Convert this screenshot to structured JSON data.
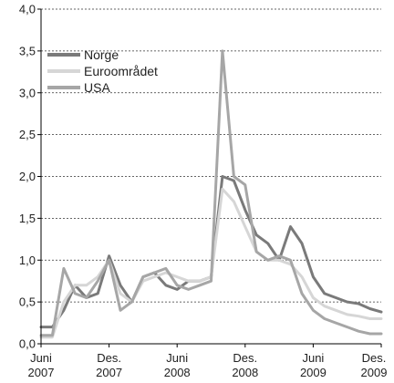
{
  "chart_data": {
    "type": "line",
    "title": "",
    "xlabel": "",
    "ylabel": "",
    "ylim": [
      0,
      4
    ],
    "y_ticks": [
      "0,0",
      "0,5",
      "1,0",
      "1,5",
      "2,0",
      "2,5",
      "3,0",
      "3,5",
      "4,0"
    ],
    "x_ticks": [
      {
        "line1": "Juni",
        "line2": "2007",
        "x": "2007-06"
      },
      {
        "line1": "Des.",
        "line2": "2007",
        "x": "2007-12"
      },
      {
        "line1": "Juni",
        "line2": "2008",
        "x": "2008-06"
      },
      {
        "line1": "Des.",
        "line2": "2008",
        "x": "2008-12"
      },
      {
        "line1": "Juni",
        "line2": "2009",
        "x": "2009-06"
      },
      {
        "line1": "Des.",
        "line2": "2009",
        "x": "2009-12"
      }
    ],
    "x_range": [
      "2007-06",
      "2009-12"
    ],
    "grid": "horizontal-dashed",
    "legend_position": "top-left",
    "series": [
      {
        "name": "Norge",
        "color": "#7a7a7a",
        "x": [
          "2007-06",
          "2007-07",
          "2007-08",
          "2007-09",
          "2007-10",
          "2007-11",
          "2007-12",
          "2008-01",
          "2008-02",
          "2008-03",
          "2008-04",
          "2008-05",
          "2008-06",
          "2008-07",
          "2008-08",
          "2008-09",
          "2008-10",
          "2008-11",
          "2008-12",
          "2009-01",
          "2009-02",
          "2009-03",
          "2009-04",
          "2009-05",
          "2009-06",
          "2009-07",
          "2009-08",
          "2009-09",
          "2009-10",
          "2009-11",
          "2009-12"
        ],
        "values": [
          0.2,
          0.2,
          0.4,
          0.7,
          0.55,
          0.6,
          1.05,
          0.7,
          0.5,
          0.8,
          0.85,
          0.7,
          0.65,
          0.75,
          0.75,
          0.8,
          2.0,
          1.95,
          1.6,
          1.3,
          1.2,
          1.0,
          1.4,
          1.2,
          0.8,
          0.6,
          0.55,
          0.5,
          0.48,
          0.42,
          0.38
        ]
      },
      {
        "name": "Euroområdet",
        "color": "#d6d6d6",
        "x": [
          "2007-06",
          "2007-07",
          "2007-08",
          "2007-09",
          "2007-10",
          "2007-11",
          "2007-12",
          "2008-01",
          "2008-02",
          "2008-03",
          "2008-04",
          "2008-05",
          "2008-06",
          "2008-07",
          "2008-08",
          "2008-09",
          "2008-10",
          "2008-11",
          "2008-12",
          "2009-01",
          "2009-02",
          "2009-03",
          "2009-04",
          "2009-05",
          "2009-06",
          "2009-07",
          "2009-08",
          "2009-09",
          "2009-10",
          "2009-11",
          "2009-12"
        ],
        "values": [
          0.08,
          0.08,
          0.5,
          0.7,
          0.7,
          0.8,
          1.0,
          0.6,
          0.5,
          0.75,
          0.8,
          0.85,
          0.8,
          0.75,
          0.75,
          0.8,
          1.85,
          1.7,
          1.4,
          1.1,
          1.0,
          1.0,
          0.95,
          0.8,
          0.55,
          0.45,
          0.4,
          0.35,
          0.33,
          0.3,
          0.3
        ]
      },
      {
        "name": "USA",
        "color": "#a6a6a6",
        "x": [
          "2007-06",
          "2007-07",
          "2007-08",
          "2007-09",
          "2007-10",
          "2007-11",
          "2007-12",
          "2008-01",
          "2008-02",
          "2008-03",
          "2008-04",
          "2008-05",
          "2008-06",
          "2008-07",
          "2008-08",
          "2008-09",
          "2008-10",
          "2008-11",
          "2008-12",
          "2009-01",
          "2009-02",
          "2009-03",
          "2009-04",
          "2009-05",
          "2009-06",
          "2009-07",
          "2009-08",
          "2009-09",
          "2009-10",
          "2009-11",
          "2009-12"
        ],
        "values": [
          0.1,
          0.1,
          0.9,
          0.6,
          0.55,
          0.75,
          1.0,
          0.4,
          0.5,
          0.8,
          0.85,
          0.9,
          0.7,
          0.65,
          0.7,
          0.75,
          3.5,
          2.0,
          1.9,
          1.1,
          1.0,
          1.05,
          1.0,
          0.6,
          0.4,
          0.3,
          0.25,
          0.2,
          0.15,
          0.12,
          0.12
        ]
      }
    ]
  }
}
